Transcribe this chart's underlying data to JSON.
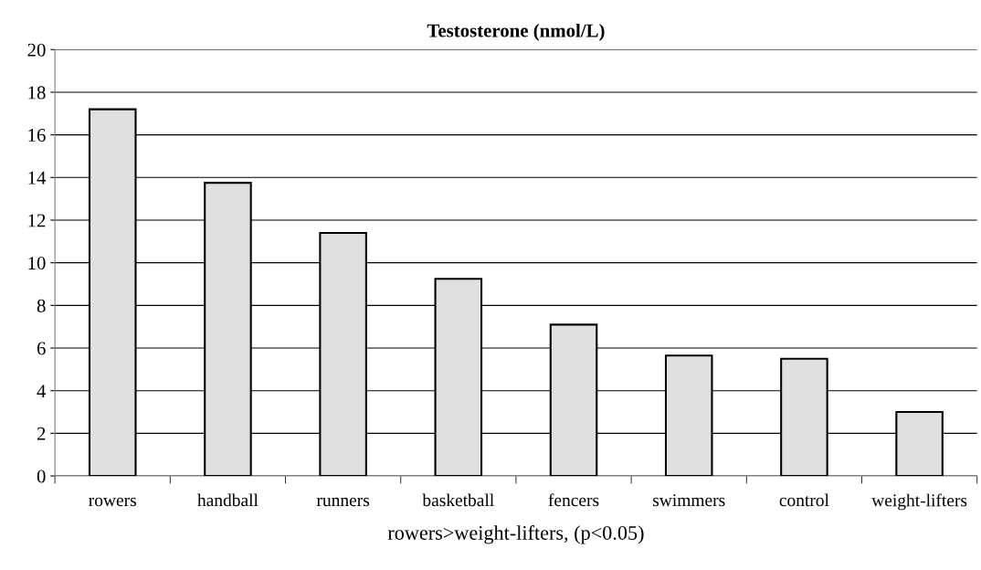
{
  "chart_data": {
    "type": "bar",
    "title": "Testosterone (nmol/L)",
    "xlabel": "rowers>weight-lifters, (p<0.05)",
    "categories": [
      "rowers",
      "handball",
      "runners",
      "basketball",
      "fencers",
      "swimmers",
      "control",
      "weight-lifters"
    ],
    "values": [
      17.2,
      13.75,
      11.4,
      9.25,
      7.1,
      5.65,
      5.5,
      3.0
    ],
    "color": "#e0e0e0",
    "ylim": [
      0,
      20
    ],
    "yticks": [
      0,
      2,
      4,
      6,
      8,
      10,
      12,
      14,
      16,
      18,
      20
    ],
    "grid": "y",
    "legend": false
  }
}
